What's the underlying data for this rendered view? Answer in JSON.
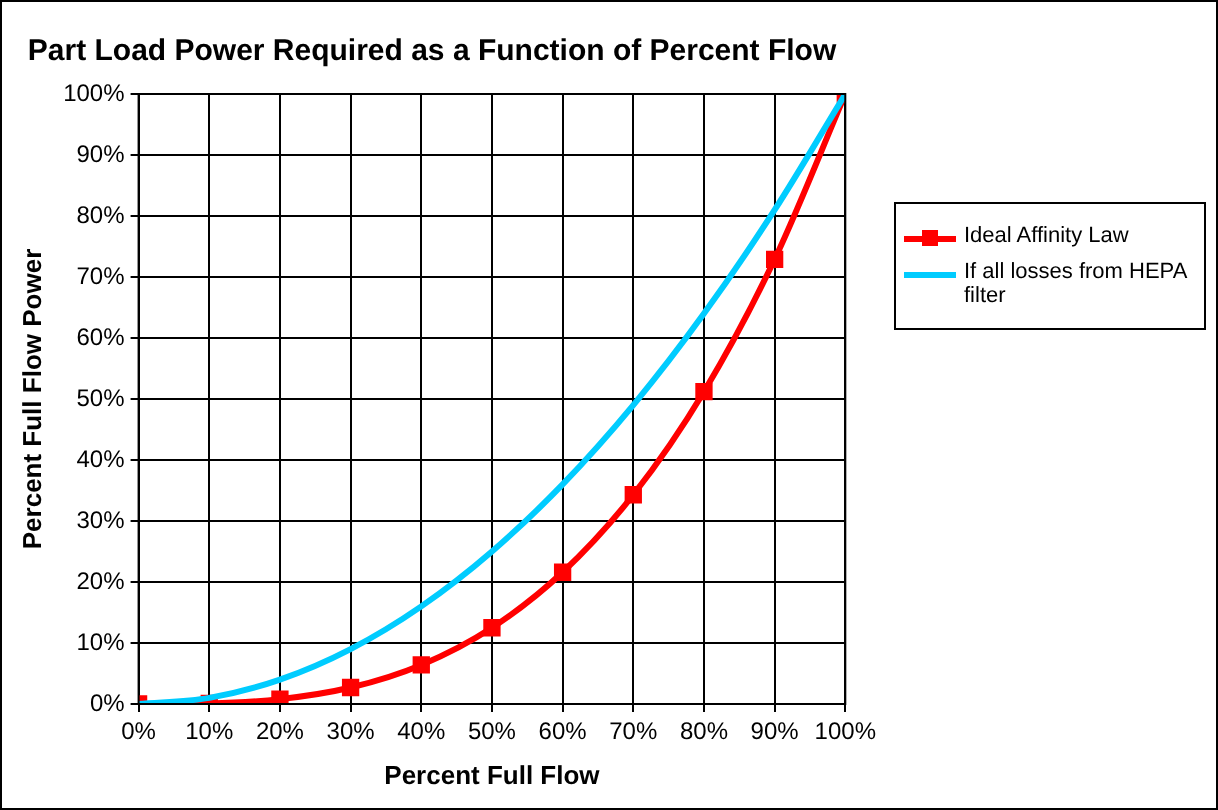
{
  "chart_data": {
    "type": "line",
    "title": "Part Load Power Required as a Function of Percent Flow",
    "xlabel": "Percent Full Flow",
    "ylabel": "Percent Full Flow Power",
    "x": [
      0,
      10,
      20,
      30,
      40,
      50,
      60,
      70,
      80,
      90,
      100
    ],
    "series": [
      {
        "name": "Ideal Affinity Law",
        "color": "#ff0000",
        "marker": "square",
        "values": [
          0,
          0.1,
          0.8,
          2.7,
          6.4,
          12.5,
          21.6,
          34.3,
          51.2,
          72.9,
          100
        ]
      },
      {
        "name": "If all losses from HEPA filter",
        "color": "#00ccff",
        "marker": "none",
        "values": [
          0,
          1,
          4,
          9,
          16,
          25,
          36,
          49,
          64,
          81,
          100
        ]
      }
    ],
    "xlim": [
      0,
      100
    ],
    "ylim": [
      0,
      100
    ],
    "xticks": [
      {
        "value": 0,
        "label": "0%"
      },
      {
        "value": 10,
        "label": "10%"
      },
      {
        "value": 20,
        "label": "20%"
      },
      {
        "value": 30,
        "label": "30%"
      },
      {
        "value": 40,
        "label": "40%"
      },
      {
        "value": 50,
        "label": "50%"
      },
      {
        "value": 60,
        "label": "60%"
      },
      {
        "value": 70,
        "label": "70%"
      },
      {
        "value": 80,
        "label": "80%"
      },
      {
        "value": 90,
        "label": "90%"
      },
      {
        "value": 100,
        "label": "100%"
      }
    ],
    "yticks": [
      {
        "value": 0,
        "label": "0%"
      },
      {
        "value": 10,
        "label": "10%"
      },
      {
        "value": 20,
        "label": "20%"
      },
      {
        "value": 30,
        "label": "30%"
      },
      {
        "value": 40,
        "label": "40%"
      },
      {
        "value": 50,
        "label": "50%"
      },
      {
        "value": 60,
        "label": "60%"
      },
      {
        "value": 70,
        "label": "70%"
      },
      {
        "value": 80,
        "label": "80%"
      },
      {
        "value": 90,
        "label": "90%"
      },
      {
        "value": 100,
        "label": "100%"
      }
    ],
    "grid": true,
    "legend": "right",
    "line_style": "solid"
  }
}
